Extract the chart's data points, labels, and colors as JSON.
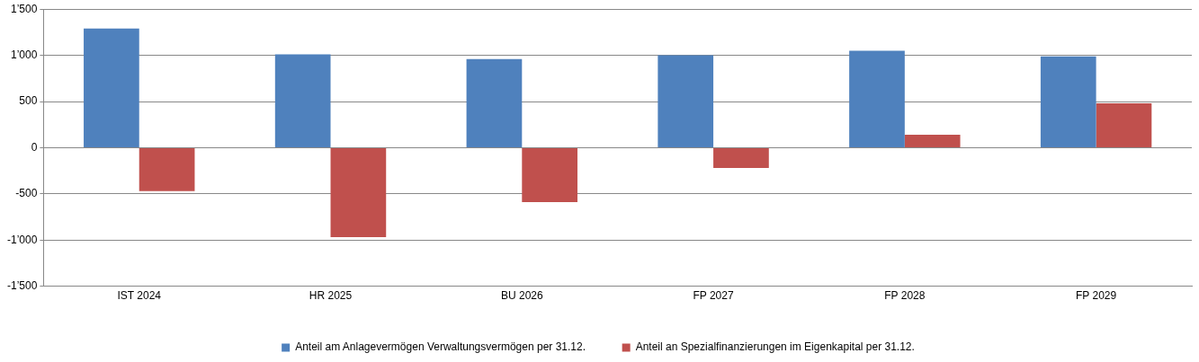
{
  "chart_data": {
    "type": "bar",
    "categories": [
      "IST 2024",
      "HR 2025",
      "BU 2026",
      "FP 2027",
      "FP 2028",
      "FP 2029"
    ],
    "series": [
      {
        "name": "Anteil am Anlagevermögen Verwaltungsvermögen per 31.12.",
        "color": "#4f81bd",
        "values": [
          1290,
          1010,
          960,
          1000,
          1050,
          990
        ]
      },
      {
        "name": "Anteil an Spezialfinanzierungen im Eigenkapital per 31.12.",
        "color": "#c0504d",
        "values": [
          -470,
          -970,
          -590,
          -220,
          140,
          480
        ]
      }
    ],
    "ylim": [
      -1500,
      1500
    ],
    "yticks": [
      {
        "value": -1500,
        "label": "-1’500"
      },
      {
        "value": -1000,
        "label": "-1’000"
      },
      {
        "value": -500,
        "label": "-500"
      },
      {
        "value": 0,
        "label": "0"
      },
      {
        "value": 500,
        "label": "500"
      },
      {
        "value": 1000,
        "label": "1’000"
      },
      {
        "value": 1500,
        "label": "1’500"
      }
    ],
    "grid": "y",
    "legend": "bottom"
  }
}
